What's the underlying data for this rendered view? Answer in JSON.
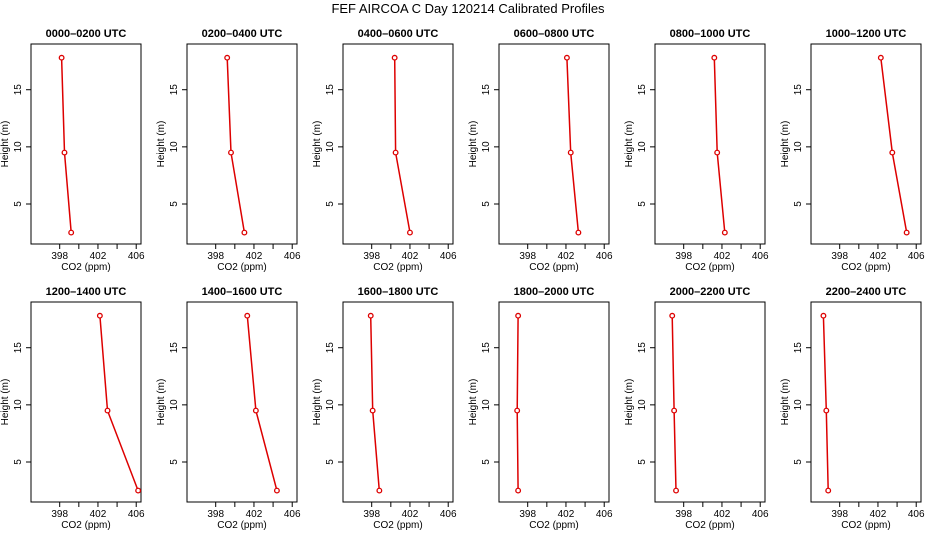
{
  "figure_title": "FEF AIRCOA C  Day 120214  Calibrated Profiles",
  "chart_data": [
    {
      "type": "line",
      "title": "0000–0200 UTC",
      "xlabel": "CO2 (ppm)",
      "ylabel": "Height (m)",
      "xlim": [
        395,
        406.5
      ],
      "ylim": [
        1.5,
        19
      ],
      "xticks": [
        398,
        402,
        406
      ],
      "yticks": [
        5,
        10,
        15
      ],
      "series": [
        {
          "values": [
            [
              398.2,
              17.8
            ],
            [
              398.5,
              9.5
            ],
            [
              399.2,
              2.5
            ]
          ]
        }
      ]
    },
    {
      "type": "line",
      "title": "0200–0400 UTC",
      "xlabel": "CO2 (ppm)",
      "ylabel": "Height (m)",
      "xlim": [
        395,
        406.5
      ],
      "ylim": [
        1.5,
        19
      ],
      "xticks": [
        398,
        402,
        406
      ],
      "yticks": [
        5,
        10,
        15
      ],
      "series": [
        {
          "values": [
            [
              399.2,
              17.8
            ],
            [
              399.6,
              9.5
            ],
            [
              401.0,
              2.5
            ]
          ]
        }
      ]
    },
    {
      "type": "line",
      "title": "0400–0600 UTC",
      "xlabel": "CO2 (ppm)",
      "ylabel": "Height (m)",
      "xlim": [
        395,
        406.5
      ],
      "ylim": [
        1.5,
        19
      ],
      "xticks": [
        398,
        402,
        406
      ],
      "yticks": [
        5,
        10,
        15
      ],
      "series": [
        {
          "values": [
            [
              400.4,
              17.8
            ],
            [
              400.5,
              9.5
            ],
            [
              402.0,
              2.5
            ]
          ]
        }
      ]
    },
    {
      "type": "line",
      "title": "0600–0800 UTC",
      "xlabel": "CO2 (ppm)",
      "ylabel": "Height (m)",
      "xlim": [
        395,
        406.5
      ],
      "ylim": [
        1.5,
        19
      ],
      "xticks": [
        398,
        402,
        406
      ],
      "yticks": [
        5,
        10,
        15
      ],
      "series": [
        {
          "values": [
            [
              402.1,
              17.8
            ],
            [
              402.5,
              9.5
            ],
            [
              403.3,
              2.5
            ]
          ]
        }
      ]
    },
    {
      "type": "line",
      "title": "0800–1000 UTC",
      "xlabel": "CO2 (ppm)",
      "ylabel": "Height (m)",
      "xlim": [
        395,
        406.5
      ],
      "ylim": [
        1.5,
        19
      ],
      "xticks": [
        398,
        402,
        406
      ],
      "yticks": [
        5,
        10,
        15
      ],
      "series": [
        {
          "values": [
            [
              401.2,
              17.8
            ],
            [
              401.5,
              9.5
            ],
            [
              402.3,
              2.5
            ]
          ]
        }
      ]
    },
    {
      "type": "line",
      "title": "1000–1200 UTC",
      "xlabel": "CO2 (ppm)",
      "ylabel": "Height (m)",
      "xlim": [
        395,
        406.5
      ],
      "ylim": [
        1.5,
        19
      ],
      "xticks": [
        398,
        402,
        406
      ],
      "yticks": [
        5,
        10,
        15
      ],
      "series": [
        {
          "values": [
            [
              402.3,
              17.8
            ],
            [
              403.5,
              9.5
            ],
            [
              405.0,
              2.5
            ]
          ]
        }
      ]
    },
    {
      "type": "line",
      "title": "1200–1400 UTC",
      "xlabel": "CO2 (ppm)",
      "ylabel": "Height (m)",
      "xlim": [
        395,
        406.5
      ],
      "ylim": [
        1.5,
        19
      ],
      "xticks": [
        398,
        402,
        406
      ],
      "yticks": [
        5,
        10,
        15
      ],
      "series": [
        {
          "values": [
            [
              402.2,
              17.8
            ],
            [
              403.0,
              9.5
            ],
            [
              406.2,
              2.5
            ]
          ]
        }
      ]
    },
    {
      "type": "line",
      "title": "1400–1600 UTC",
      "xlabel": "CO2 (ppm)",
      "ylabel": "Height (m)",
      "xlim": [
        395,
        406.5
      ],
      "ylim": [
        1.5,
        19
      ],
      "xticks": [
        398,
        402,
        406
      ],
      "yticks": [
        5,
        10,
        15
      ],
      "series": [
        {
          "values": [
            [
              401.3,
              17.8
            ],
            [
              402.2,
              9.5
            ],
            [
              404.4,
              2.5
            ]
          ]
        }
      ]
    },
    {
      "type": "line",
      "title": "1600–1800 UTC",
      "xlabel": "CO2 (ppm)",
      "ylabel": "Height (m)",
      "xlim": [
        395,
        406.5
      ],
      "ylim": [
        1.5,
        19
      ],
      "xticks": [
        398,
        402,
        406
      ],
      "yticks": [
        5,
        10,
        15
      ],
      "series": [
        {
          "values": [
            [
              397.9,
              17.8
            ],
            [
              398.1,
              9.5
            ],
            [
              398.8,
              2.5
            ]
          ]
        }
      ]
    },
    {
      "type": "line",
      "title": "1800–2000 UTC",
      "xlabel": "CO2 (ppm)",
      "ylabel": "Height (m)",
      "xlim": [
        395,
        406.5
      ],
      "ylim": [
        1.5,
        19
      ],
      "xticks": [
        398,
        402,
        406
      ],
      "yticks": [
        5,
        10,
        15
      ],
      "series": [
        {
          "values": [
            [
              397.0,
              17.8
            ],
            [
              396.9,
              9.5
            ],
            [
              397.0,
              2.5
            ]
          ]
        }
      ]
    },
    {
      "type": "line",
      "title": "2000–2200 UTC",
      "xlabel": "CO2 (ppm)",
      "ylabel": "Height (m)",
      "xlim": [
        395,
        406.5
      ],
      "ylim": [
        1.5,
        19
      ],
      "xticks": [
        398,
        402,
        406
      ],
      "yticks": [
        5,
        10,
        15
      ],
      "series": [
        {
          "values": [
            [
              396.8,
              17.8
            ],
            [
              397.0,
              9.5
            ],
            [
              397.2,
              2.5
            ]
          ]
        }
      ]
    },
    {
      "type": "line",
      "title": "2200–2400 UTC",
      "xlabel": "CO2 (ppm)",
      "ylabel": "Height (m)",
      "xlim": [
        395,
        406.5
      ],
      "ylim": [
        1.5,
        19
      ],
      "xticks": [
        398,
        402,
        406
      ],
      "yticks": [
        5,
        10,
        15
      ],
      "series": [
        {
          "values": [
            [
              396.3,
              17.8
            ],
            [
              396.6,
              9.5
            ],
            [
              396.8,
              2.5
            ]
          ]
        }
      ]
    }
  ],
  "colors": {
    "series": "#dd0000",
    "axis": "#000000"
  }
}
